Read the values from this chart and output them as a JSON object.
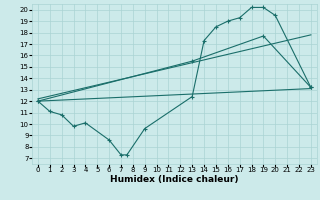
{
  "xlabel": "Humidex (Indice chaleur)",
  "bg_color": "#cceaea",
  "line_color": "#1a6e6a",
  "grid_color": "#aad4d4",
  "xlim": [
    -0.5,
    23.5
  ],
  "ylim": [
    6.5,
    20.5
  ],
  "xticks": [
    0,
    1,
    2,
    3,
    4,
    5,
    6,
    7,
    8,
    9,
    10,
    11,
    12,
    13,
    14,
    15,
    16,
    17,
    18,
    19,
    20,
    21,
    22,
    23
  ],
  "yticks": [
    7,
    8,
    9,
    10,
    11,
    12,
    13,
    14,
    15,
    16,
    17,
    18,
    19,
    20
  ],
  "line1_x": [
    0,
    1,
    2,
    3,
    4,
    6,
    7,
    7.5,
    9,
    13,
    14,
    15,
    16,
    17,
    18,
    19,
    20,
    23
  ],
  "line1_y": [
    12,
    11.1,
    10.8,
    9.8,
    10.1,
    8.6,
    7.3,
    7.3,
    9.6,
    12.4,
    17.3,
    18.5,
    19.0,
    19.3,
    20.2,
    20.2,
    19.5,
    13.2
  ],
  "line2_x": [
    0,
    23
  ],
  "line2_y": [
    12.0,
    13.1
  ],
  "line3_x": [
    0,
    23
  ],
  "line3_y": [
    12.2,
    17.8
  ],
  "line4_x": [
    0,
    13,
    19,
    23
  ],
  "line4_y": [
    12.0,
    15.5,
    17.7,
    13.2
  ],
  "tick_fontsize": 5.0,
  "xlabel_fontsize": 6.5
}
